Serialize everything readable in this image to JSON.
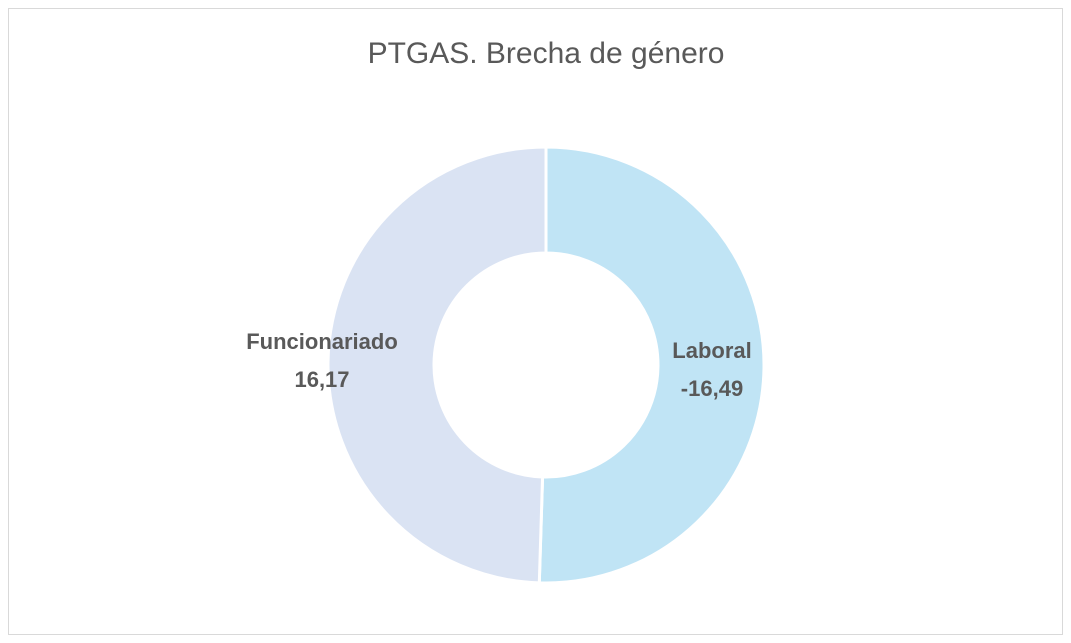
{
  "chart_data": {
    "type": "pie",
    "donut": true,
    "title": "PTGAS. Brecha de género",
    "categories": [
      "Laboral",
      "Funcionariado"
    ],
    "values": [
      -16.49,
      16.17
    ],
    "value_labels": [
      "-16,49",
      "16,17"
    ],
    "colors": [
      "#c0e4f5",
      "#dae3f3"
    ]
  }
}
